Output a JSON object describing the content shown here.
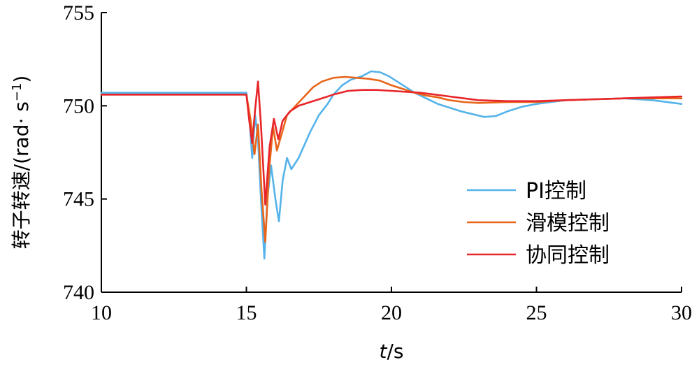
{
  "chart_data": {
    "type": "line",
    "xlabel_var": "t",
    "xlabel_unit": "/s",
    "ylabel": "转子转速/(rad· s",
    "ylabel_sup": "−1",
    "ylabel_close": ")",
    "xlim": [
      10,
      30
    ],
    "ylim": [
      740,
      755
    ],
    "xticks": [
      10,
      15,
      20,
      25,
      30
    ],
    "yticks": [
      740,
      745,
      750,
      755
    ],
    "grid": false,
    "legend_position": "bottom-right",
    "series": [
      {
        "name": "PI控制",
        "color": "#55b3ea",
        "x": [
          10,
          15,
          15.1,
          15.2,
          15.3,
          15.4,
          15.5,
          15.62,
          15.72,
          15.85,
          16.0,
          16.12,
          16.25,
          16.4,
          16.55,
          16.8,
          17.0,
          17.2,
          17.5,
          17.8,
          18.0,
          18.3,
          18.6,
          19.0,
          19.3,
          19.6,
          19.9,
          20.2,
          20.5,
          20.8,
          21.2,
          21.6,
          22.0,
          22.4,
          22.8,
          23.2,
          23.6,
          24.0,
          24.5,
          25.0,
          25.5,
          26.0,
          27.0,
          28.0,
          29.0,
          30.0
        ],
        "y": [
          750.7,
          750.7,
          749.4,
          747.2,
          749.5,
          748.2,
          745.0,
          741.8,
          745.0,
          746.8,
          745.0,
          743.8,
          746.0,
          747.2,
          746.6,
          747.2,
          747.9,
          748.6,
          749.5,
          750.1,
          750.6,
          751.1,
          751.4,
          751.6,
          751.85,
          751.8,
          751.6,
          751.3,
          751.0,
          750.7,
          750.4,
          750.1,
          749.9,
          749.7,
          749.55,
          749.4,
          749.45,
          749.7,
          749.95,
          750.1,
          750.2,
          750.3,
          750.35,
          750.4,
          750.3,
          750.1
        ]
      },
      {
        "name": "滑模控制",
        "color": "#e8651a",
        "x": [
          10,
          15,
          15.15,
          15.28,
          15.4,
          15.52,
          15.65,
          15.78,
          15.92,
          16.05,
          16.2,
          16.4,
          16.7,
          17.0,
          17.3,
          17.6,
          18.0,
          18.4,
          18.8,
          19.2,
          19.6,
          20.0,
          20.4,
          20.8,
          21.2,
          21.6,
          22.0,
          22.5,
          23.0,
          24.0,
          25.0,
          26.0,
          27.0,
          28.0,
          29.0,
          30.0
        ],
        "y": [
          750.6,
          750.6,
          749.2,
          747.4,
          749.0,
          745.5,
          742.7,
          746.5,
          748.9,
          747.6,
          748.4,
          749.5,
          750.0,
          750.5,
          751.0,
          751.3,
          751.5,
          751.55,
          751.5,
          751.45,
          751.35,
          751.1,
          750.9,
          750.7,
          750.55,
          750.45,
          750.3,
          750.2,
          750.15,
          750.2,
          750.2,
          750.3,
          750.35,
          750.4,
          750.4,
          750.4
        ]
      },
      {
        "name": "协同控制",
        "color": "#e8262a",
        "x": [
          10,
          15,
          15.1,
          15.2,
          15.3,
          15.4,
          15.5,
          15.65,
          15.8,
          15.95,
          16.1,
          16.25,
          16.5,
          16.8,
          17.2,
          17.6,
          18.0,
          18.5,
          19.0,
          19.5,
          20.0,
          20.5,
          21.0,
          21.5,
          22.0,
          22.5,
          23.0,
          24.0,
          25.0,
          26.0,
          27.0,
          28.0,
          29.0,
          30.0
        ],
        "y": [
          750.6,
          750.6,
          749.2,
          748.0,
          749.8,
          751.3,
          749.0,
          744.7,
          747.8,
          749.3,
          748.2,
          749.2,
          749.7,
          750.0,
          750.2,
          750.4,
          750.6,
          750.8,
          750.85,
          750.85,
          750.8,
          750.75,
          750.7,
          750.6,
          750.5,
          750.4,
          750.3,
          750.25,
          750.25,
          750.3,
          750.35,
          750.4,
          750.45,
          750.5
        ]
      }
    ]
  }
}
